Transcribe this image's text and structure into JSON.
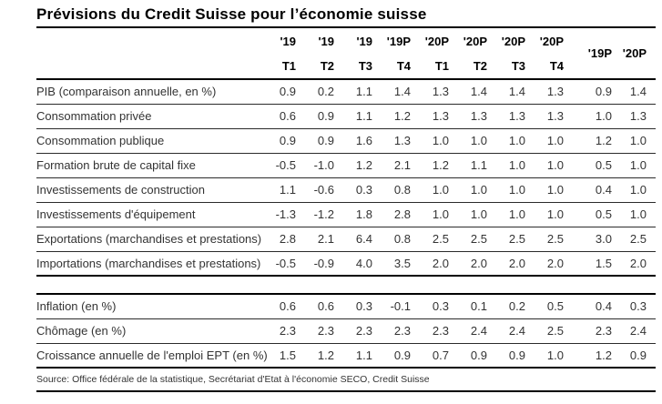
{
  "title": "Prévisions du Credit Suisse pour l’économie suisse",
  "table": {
    "header": {
      "year_row": [
        "'19",
        "'19",
        "'19",
        "'19P",
        "'20P",
        "'20P",
        "'20P",
        "'20P"
      ],
      "quarter_row": [
        "T1",
        "T2",
        "T3",
        "T4",
        "T1",
        "T2",
        "T3",
        "T4"
      ],
      "annual": [
        "'19P",
        "'20P"
      ]
    },
    "sections": [
      {
        "rows": [
          {
            "label": "PIB (comparaison annuelle, en %)",
            "values": [
              "0.9",
              "0.2",
              "1.1",
              "1.4",
              "1.3",
              "1.4",
              "1.4",
              "1.3"
            ],
            "annual": [
              "0.9",
              "1.4"
            ]
          },
          {
            "label": "Consommation privée",
            "values": [
              "0.6",
              "0.9",
              "1.1",
              "1.2",
              "1.3",
              "1.3",
              "1.3",
              "1.3"
            ],
            "annual": [
              "1.0",
              "1.3"
            ]
          },
          {
            "label": "Consommation publique",
            "values": [
              "0.9",
              "0.9",
              "1.6",
              "1.3",
              "1.0",
              "1.0",
              "1.0",
              "1.0"
            ],
            "annual": [
              "1.2",
              "1.0"
            ]
          },
          {
            "label": "Formation brute de capital fixe",
            "values": [
              "-0.5",
              "-1.0",
              "1.2",
              "2.1",
              "1.2",
              "1.1",
              "1.0",
              "1.0"
            ],
            "annual": [
              "0.5",
              "1.0"
            ]
          },
          {
            "label": "Investissements de construction",
            "values": [
              "1.1",
              "-0.6",
              "0.3",
              "0.8",
              "1.0",
              "1.0",
              "1.0",
              "1.0"
            ],
            "annual": [
              "0.4",
              "1.0"
            ]
          },
          {
            "label": "Investissements d'équipement",
            "values": [
              "-1.3",
              "-1.2",
              "1.8",
              "2.8",
              "1.0",
              "1.0",
              "1.0",
              "1.0"
            ],
            "annual": [
              "0.5",
              "1.0"
            ]
          },
          {
            "label": "Exportations (marchandises et prestations)",
            "values": [
              "2.8",
              "2.1",
              "6.4",
              "0.8",
              "2.5",
              "2.5",
              "2.5",
              "2.5"
            ],
            "annual": [
              "3.0",
              "2.5"
            ]
          },
          {
            "label": "Importations (marchandises et prestations)",
            "values": [
              "-0.5",
              "-0.9",
              "4.0",
              "3.5",
              "2.0",
              "2.0",
              "2.0",
              "2.0"
            ],
            "annual": [
              "1.5",
              "2.0"
            ]
          }
        ]
      },
      {
        "rows": [
          {
            "label": "Inflation (en %)",
            "values": [
              "0.6",
              "0.6",
              "0.3",
              "-0.1",
              "0.3",
              "0.1",
              "0.2",
              "0.5"
            ],
            "annual": [
              "0.4",
              "0.3"
            ]
          },
          {
            "label": "Chômage (en %)",
            "values": [
              "2.3",
              "2.3",
              "2.3",
              "2.3",
              "2.3",
              "2.4",
              "2.4",
              "2.5"
            ],
            "annual": [
              "2.3",
              "2.4"
            ]
          },
          {
            "label": "Croissance annuelle de l'emploi EPT (en %)",
            "values": [
              "1.5",
              "1.2",
              "1.1",
              "0.9",
              "0.7",
              "0.9",
              "0.9",
              "1.0"
            ],
            "annual": [
              "1.2",
              "0.9"
            ]
          }
        ]
      }
    ]
  },
  "source": "Source: Office fédérale de la statistique, Secrétariat d'Etat à l'économie SECO, Credit Suisse"
}
